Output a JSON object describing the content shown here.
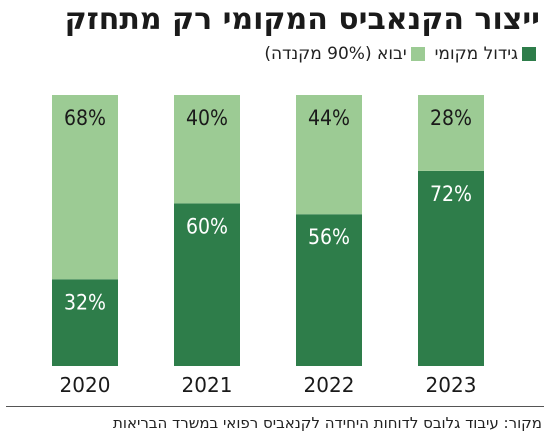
{
  "chart_data": {
    "type": "bar",
    "stacked": true,
    "title": "ייצור הקנאביס המקומי רק מתחזק",
    "categories": [
      "2020",
      "2021",
      "2022",
      "2023"
    ],
    "series": [
      {
        "name": "גידול מקומי",
        "values": [
          32,
          60,
          56,
          72
        ],
        "labels": [
          "32%",
          "60%",
          "56%",
          "72%"
        ],
        "color": "#2e7d4a"
      },
      {
        "name": "יבוא (90% מקנדה)",
        "values": [
          68,
          40,
          44,
          28
        ],
        "labels": [
          "68%",
          "40%",
          "44%",
          "28%"
        ],
        "color": "#9ccb94"
      }
    ],
    "ylim": [
      0,
      100
    ],
    "grid": false,
    "legend_position": "top-right",
    "source": "מקור: עיבוד גלובס לדוחות היחידה לקנאביס רפואי במשרד הבריאות"
  }
}
